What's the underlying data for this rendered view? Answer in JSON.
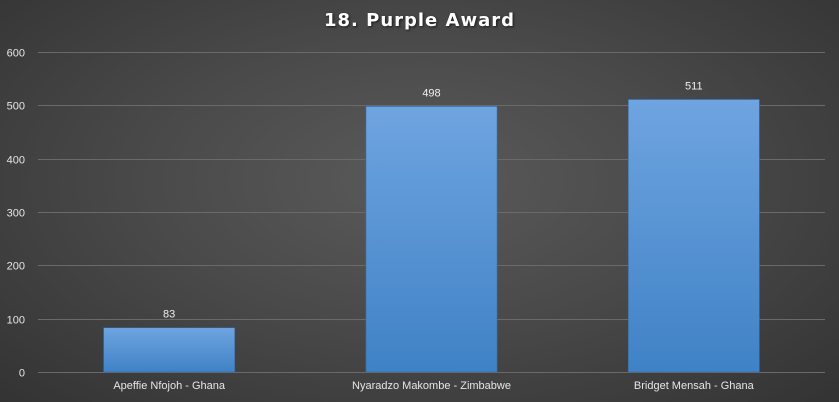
{
  "chart_data": {
    "type": "bar",
    "title": "18. Purple Award",
    "xlabel": "",
    "ylabel": "",
    "categories": [
      "Apeffie Nfojoh - Ghana",
      "Nyaradzo Makombe - Zimbabwe",
      "Bridget Mensah - Ghana"
    ],
    "values": [
      83,
      498,
      511
    ],
    "data_labels": [
      "83",
      "498",
      "511"
    ],
    "ylim": [
      0,
      600
    ],
    "yticks": [
      0,
      100,
      200,
      300,
      400,
      500,
      600
    ],
    "grid": true,
    "legend": "none",
    "colors": {
      "bar_top": "#6fa4e0",
      "bar_bottom": "#3f82c6",
      "background": "#474747",
      "gridline": "#6a6a6a"
    }
  }
}
